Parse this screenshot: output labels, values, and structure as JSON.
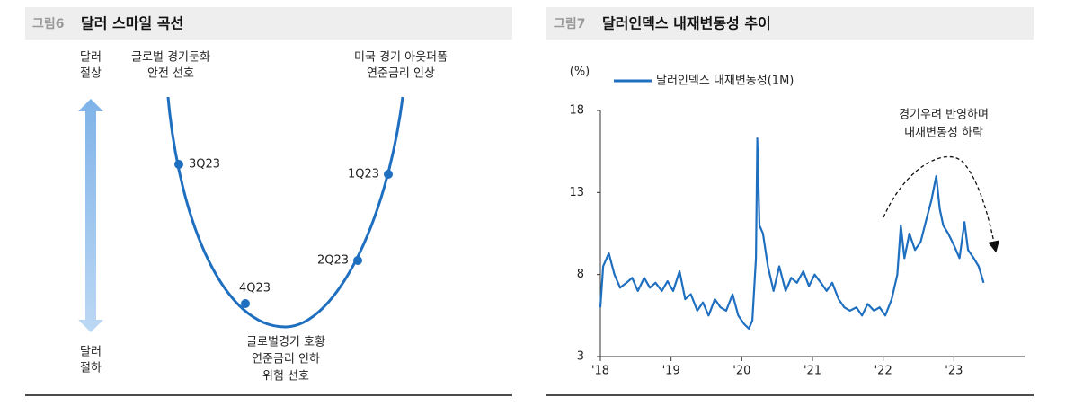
{
  "diagram": {
    "label": "그림6",
    "title": "달러 스마일 곡선",
    "up_label": [
      "달러",
      "절상"
    ],
    "down_label": [
      "달러",
      "절하"
    ],
    "left_top": [
      "글로벌 경기둔화",
      "안전 선호"
    ],
    "right_top": [
      "미국 경기 아웃퍼폼",
      "연준금리 인상"
    ],
    "bottom": [
      "글로벌경기 호황",
      "연준금리 인하",
      "위험 선호"
    ],
    "points": [
      "3Q23",
      "1Q23",
      "2Q23",
      "4Q23"
    ]
  },
  "chart_data": {
    "type": "line",
    "label": "그림7",
    "title": "달러인덱스 내재변동성 추이",
    "y_unit": "(%)",
    "annotation": [
      "경기우려 반영하며",
      "내재변동성 하락"
    ],
    "x": [
      2018.0,
      2018.04,
      2018.12,
      2018.2,
      2018.28,
      2018.37,
      2018.45,
      2018.53,
      2018.62,
      2018.7,
      2018.78,
      2018.87,
      2018.95,
      2019.03,
      2019.12,
      2019.2,
      2019.28,
      2019.37,
      2019.45,
      2019.53,
      2019.62,
      2019.7,
      2019.78,
      2019.87,
      2019.95,
      2020.03,
      2020.1,
      2020.15,
      2020.2,
      2020.22,
      2020.25,
      2020.3,
      2020.37,
      2020.45,
      2020.53,
      2020.62,
      2020.7,
      2020.78,
      2020.87,
      2020.95,
      2021.03,
      2021.12,
      2021.2,
      2021.28,
      2021.37,
      2021.45,
      2021.53,
      2021.62,
      2021.7,
      2021.78,
      2021.87,
      2021.95,
      2022.03,
      2022.12,
      2022.2,
      2022.25,
      2022.3,
      2022.37,
      2022.45,
      2022.53,
      2022.62,
      2022.68,
      2022.75,
      2022.8,
      2022.85,
      2022.92,
      2023.0,
      2023.08,
      2023.15,
      2023.2,
      2023.28,
      2023.35,
      2023.42
    ],
    "series": [
      {
        "name": "달러인덱스 내재변동성(1M)",
        "color": "#1f6fc0",
        "values": [
          6.0,
          8.5,
          9.3,
          8.0,
          7.2,
          7.5,
          7.8,
          7.0,
          7.8,
          7.2,
          7.5,
          7.0,
          7.6,
          7.0,
          8.2,
          6.5,
          6.8,
          5.8,
          6.3,
          5.5,
          6.5,
          6.0,
          5.8,
          6.8,
          5.5,
          5.0,
          4.7,
          5.2,
          9.0,
          16.3,
          11.0,
          10.5,
          8.5,
          7.0,
          8.5,
          7.0,
          7.8,
          7.5,
          8.2,
          7.3,
          8.0,
          7.5,
          7.0,
          7.5,
          6.5,
          6.0,
          5.8,
          6.0,
          5.5,
          6.2,
          5.8,
          6.0,
          5.5,
          6.5,
          8.0,
          11.0,
          9.0,
          10.5,
          9.5,
          10.0,
          11.5,
          12.5,
          14.0,
          12.0,
          11.0,
          10.5,
          9.8,
          9.0,
          11.2,
          9.5,
          9.0,
          8.5,
          7.5
        ]
      }
    ],
    "xlim": [
      2018,
      2024
    ],
    "xticks": [
      {
        "value": 2018,
        "label": "'18"
      },
      {
        "value": 2019,
        "label": "'19"
      },
      {
        "value": 2020,
        "label": "'20"
      },
      {
        "value": 2021,
        "label": "'21"
      },
      {
        "value": 2022,
        "label": "'22"
      },
      {
        "value": 2023,
        "label": "'23"
      }
    ],
    "ylim": [
      3,
      18
    ],
    "yticks": [
      3,
      8,
      13,
      18
    ],
    "grid": false
  }
}
